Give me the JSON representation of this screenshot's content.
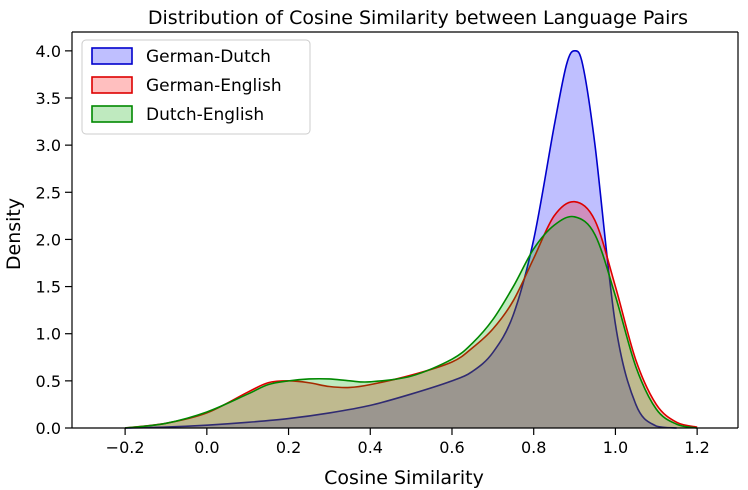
{
  "chart_data": {
    "type": "area",
    "title": "Distribution of Cosine Similarity between Language Pairs",
    "xlabel": "Cosine Similarity",
    "ylabel": "Density",
    "xlim": [
      -0.33,
      1.3
    ],
    "ylim": [
      0,
      4.2
    ],
    "x_ticks": [
      "−0.2",
      "0.0",
      "0.2",
      "0.4",
      "0.6",
      "0.8",
      "1.0",
      "1.2"
    ],
    "x_tick_values": [
      -0.2,
      0.0,
      0.2,
      0.4,
      0.6,
      0.8,
      1.0,
      1.2
    ],
    "y_ticks": [
      "0.0",
      "0.5",
      "1.0",
      "1.5",
      "2.0",
      "2.5",
      "3.0",
      "3.5",
      "4.0"
    ],
    "y_tick_values": [
      0.0,
      0.5,
      1.0,
      1.5,
      2.0,
      2.5,
      3.0,
      3.5,
      4.0
    ],
    "grid": false,
    "legend_position": "top-left",
    "series": [
      {
        "name": "German-Dutch",
        "color": "#0000cc",
        "fill": "#0000ff",
        "x": [
          -0.2,
          -0.1,
          0.0,
          0.1,
          0.2,
          0.3,
          0.4,
          0.5,
          0.6,
          0.65,
          0.7,
          0.75,
          0.8,
          0.85,
          0.88,
          0.9,
          0.92,
          0.95,
          1.0,
          1.05,
          1.1,
          1.15
        ],
        "y": [
          0.0,
          0.01,
          0.03,
          0.06,
          0.1,
          0.16,
          0.24,
          0.36,
          0.5,
          0.6,
          0.8,
          1.2,
          2.0,
          3.2,
          3.85,
          4.0,
          3.85,
          3.0,
          1.1,
          0.25,
          0.02,
          0.0
        ]
      },
      {
        "name": "German-English",
        "color": "#dd0000",
        "fill": "#ff0000",
        "x": [
          -0.2,
          -0.1,
          0.0,
          0.1,
          0.15,
          0.2,
          0.25,
          0.3,
          0.35,
          0.4,
          0.5,
          0.6,
          0.65,
          0.7,
          0.75,
          0.8,
          0.85,
          0.9,
          0.95,
          1.0,
          1.05,
          1.1,
          1.15,
          1.2
        ],
        "y": [
          0.0,
          0.05,
          0.16,
          0.38,
          0.48,
          0.5,
          0.48,
          0.44,
          0.43,
          0.46,
          0.56,
          0.7,
          0.85,
          1.05,
          1.35,
          1.8,
          2.25,
          2.4,
          2.2,
          1.5,
          0.72,
          0.25,
          0.06,
          0.01
        ]
      },
      {
        "name": "Dutch-English",
        "color": "#008800",
        "fill": "#00aa00",
        "x": [
          -0.2,
          -0.1,
          0.0,
          0.1,
          0.15,
          0.2,
          0.25,
          0.3,
          0.35,
          0.4,
          0.5,
          0.6,
          0.65,
          0.7,
          0.75,
          0.8,
          0.85,
          0.9,
          0.95,
          1.0,
          1.05,
          1.1,
          1.15,
          1.2
        ],
        "y": [
          0.0,
          0.05,
          0.17,
          0.36,
          0.46,
          0.5,
          0.52,
          0.52,
          0.5,
          0.49,
          0.55,
          0.73,
          0.9,
          1.15,
          1.5,
          1.9,
          2.15,
          2.24,
          2.05,
          1.4,
          0.65,
          0.2,
          0.04,
          0.0
        ]
      }
    ]
  }
}
